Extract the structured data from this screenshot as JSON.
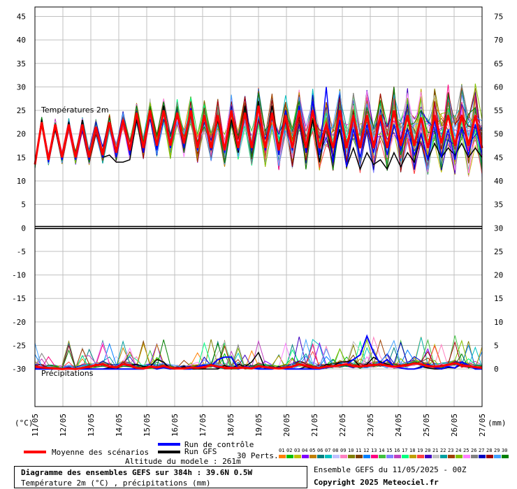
{
  "chart_data": {
    "type": "line",
    "title": "Diagramme des ensembles GEFS sur 384h : 39.6N 0.5W",
    "subtitle": "Température 2m (°C) , précipitations (mm)",
    "temp_pane_label": "Températures 2m",
    "precip_pane_label": "Précipitations",
    "left_axis_unit": "(°C)",
    "right_axis_unit": "(mm)",
    "left_axis": {
      "ticks": [
        45,
        40,
        35,
        30,
        25,
        20,
        15,
        10,
        5,
        0,
        -5,
        -10,
        -15,
        -20,
        -25,
        -30
      ],
      "range": [
        -38,
        47
      ]
    },
    "right_axis": {
      "ticks": [
        75,
        70,
        65,
        60,
        55,
        50,
        45,
        40,
        35,
        30,
        25,
        20,
        15,
        10,
        5,
        0
      ]
    },
    "dates": [
      "11/05",
      "12/05",
      "13/05",
      "14/05",
      "15/05",
      "16/05",
      "17/05",
      "18/05",
      "19/05",
      "20/05",
      "21/05",
      "22/05",
      "23/05",
      "24/05",
      "25/05",
      "26/05",
      "27/05"
    ],
    "mean_temp": [
      13.5,
      22.5,
      14.5,
      22,
      15,
      22,
      15,
      22,
      15,
      21.5,
      15.5,
      22.5,
      16,
      23,
      16.5,
      24.5,
      17,
      25,
      17.5,
      25,
      17.5,
      24.5,
      18,
      25,
      17,
      24,
      17,
      24,
      16.5,
      25,
      17,
      24.5,
      17,
      26,
      17,
      24.5,
      16.5,
      24,
      17,
      25,
      17,
      25,
      17,
      22,
      17,
      25,
      17,
      24,
      17,
      24,
      17,
      24,
      17,
      25,
      17.5,
      24,
      17.5,
      23.5,
      17,
      24,
      18,
      24,
      17.5,
      24,
      17.5,
      24,
      17
    ],
    "control_temp": [
      13.5,
      22,
      14,
      21.5,
      14.5,
      21.5,
      14.5,
      21,
      14.5,
      21,
      15,
      22,
      15,
      22.5,
      15.5,
      24,
      16,
      25,
      16.5,
      25,
      17,
      24.5,
      17,
      25.5,
      16.5,
      24,
      16.5,
      23.5,
      16,
      25,
      16.5,
      24,
      16.5,
      26,
      16.5,
      24.5,
      15.5,
      25,
      16.5,
      26,
      16,
      27,
      15.5,
      30,
      14,
      23,
      13,
      21,
      15,
      22,
      16,
      23,
      15.5,
      22,
      16.5,
      21,
      15.5,
      20,
      14.5,
      23,
      15,
      21,
      14.5,
      21,
      15.5,
      22,
      15.5
    ],
    "gfs_temp": [
      13.5,
      23,
      14,
      21,
      14.5,
      22.5,
      15,
      23,
      15,
      21.5,
      15,
      15.5,
      14,
      14,
      14.5,
      23,
      16,
      25,
      17,
      26,
      17,
      24,
      17,
      25,
      17.5,
      24,
      17,
      23,
      16.5,
      23,
      16,
      26,
      17,
      27,
      17,
      26,
      17,
      25,
      16.5,
      24,
      16,
      23,
      14,
      22,
      15,
      21,
      13,
      17,
      12.5,
      16,
      13.5,
      14.5,
      12.5,
      16,
      13,
      16,
      14,
      20,
      14.5,
      18,
      15,
      17,
      15.5,
      18,
      15,
      17,
      15
    ],
    "mean_precip": [
      0.5,
      0.3,
      0.2,
      0.1,
      0,
      0.1,
      0,
      0.2,
      0.5,
      0.8,
      1,
      0.5,
      0.3,
      1,
      0.8,
      0.2,
      0.1,
      0.5,
      0.3,
      0.6,
      0.2,
      0.1,
      0.1,
      0.3,
      0.2,
      0.4,
      0.8,
      0.5,
      0.3,
      0.2,
      0.2,
      0.3,
      0.1,
      0.6,
      0.4,
      0.2,
      0.1,
      0.3,
      0.5,
      1,
      0.7,
      0.3,
      0.2,
      0.5,
      0.6,
      0.8,
      1,
      0.6,
      0.5,
      0.7,
      0.8,
      1,
      0.7,
      0.5,
      0.6,
      0.8,
      1.2,
      1,
      0.6,
      0.5,
      0.6,
      0.9,
      1.2,
      0.8,
      0.6,
      0.4,
      0.2
    ],
    "control_precip": [
      0,
      0,
      0,
      0,
      0,
      0,
      0,
      0,
      0,
      0,
      0,
      0,
      0,
      0,
      0,
      0,
      0,
      0.5,
      0,
      0.3,
      0,
      0.2,
      0,
      0,
      0.5,
      0.8,
      0.6,
      2,
      2.5,
      2.5,
      0,
      0.5,
      0.2,
      0,
      0,
      0,
      0.3,
      0,
      0,
      0,
      0,
      0,
      0,
      0.3,
      0.5,
      0.8,
      1,
      2,
      3,
      7,
      3.5,
      1,
      2,
      0.5,
      0.2,
      0,
      0,
      0.3,
      1,
      0.3,
      0,
      0.5,
      0.2,
      1.5,
      0.8,
      0,
      0
    ],
    "gfs_precip": [
      0,
      0,
      0,
      0,
      0,
      0,
      0,
      0,
      0,
      0,
      0,
      0.3,
      0,
      1,
      0.8,
      1,
      0.5,
      0.5,
      2,
      1.5,
      0,
      0,
      0.5,
      0,
      0,
      0,
      0,
      0,
      0.8,
      0,
      1,
      0.5,
      1.5,
      3.5,
      0,
      0,
      0.5,
      0,
      0,
      0,
      0.5,
      0,
      0,
      1,
      0.6,
      1.5,
      1.5,
      2,
      0.5,
      1,
      2.5,
      1.5,
      1,
      0.5,
      0.2,
      0,
      0,
      0.5,
      0.2,
      0,
      0,
      0.3,
      0.2,
      1,
      0.5,
      0.2,
      0
    ],
    "legend": {
      "moyenne": "Moyenne des scénarios",
      "controle": "Run de contrôle",
      "gfs": "Run GFS",
      "perts": "30 Perts.",
      "altitude": "Altitude du modele : 261m"
    },
    "pert_labels": [
      "01",
      "02",
      "03",
      "04",
      "05",
      "06",
      "07",
      "08",
      "09",
      "10",
      "11",
      "12",
      "13",
      "14",
      "15",
      "16",
      "17",
      "18",
      "19",
      "20",
      "21",
      "22",
      "23",
      "24",
      "25",
      "26",
      "27",
      "28",
      "29",
      "30"
    ],
    "pert_colors": [
      "#ff8000",
      "#00c000",
      "#c0c000",
      "#8000ff",
      "#c08000",
      "#008080",
      "#00c0c0",
      "#c0c0ff",
      "#ff80c0",
      "#808000",
      "#804000",
      "#0080ff",
      "#ff0080",
      "#40c040",
      "#8080ff",
      "#c040c0",
      "#00ff80",
      "#c0a000",
      "#ff4040",
      "#4000c0",
      "#c0c0c0",
      "#00a0a0",
      "#a04000",
      "#80c000",
      "#ff80ff",
      "#808080",
      "#0000c0",
      "#a00000",
      "#40a0ff",
      "#008000"
    ],
    "colors": {
      "mean": "#ff0000",
      "control": "#0000ff",
      "gfs": "#000000"
    },
    "footer": {
      "ensemble": "Ensemble GEFS du 11/05/2025 - 00Z",
      "copyright": "Copyright 2025 Meteociel.fr"
    }
  }
}
